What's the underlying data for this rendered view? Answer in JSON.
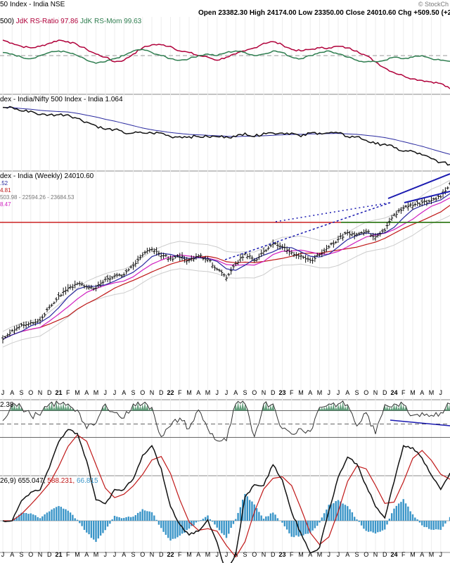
{
  "header": {
    "title": "50 Index - India NSE",
    "ohlc": "Open 23382.30  High 24174.00  Low 23350.00  Close 24010.60  Chg +509.50 (+2",
    "source": "© StockCh"
  },
  "panels": {
    "rrg": {
      "label_prefix": "500)",
      "ratio_label": "JdK RS-Ratio 97.86",
      "mom_label": "JdK RS-Mom 99.63"
    },
    "relative": {
      "label": "dex - India/Nifty 500 Index - India 1.064"
    },
    "price": {
      "label": "dex - India (Weekly) 24010.60",
      "legend": [
        ".52",
        "4.81",
        "503.98 - 22594.26 - 23684.53",
        "8.47"
      ]
    },
    "rsi": {
      "label": "2.38"
    },
    "macd": {
      "label": "26,9) 655.047,",
      "macd_value": "588.231,",
      "hist_value": "66.815"
    }
  },
  "axis": {
    "labels": [
      "J",
      "A",
      "S",
      "O",
      "N",
      "D",
      "21",
      "F",
      "M",
      "A",
      "M",
      "J",
      "J",
      "A",
      "S",
      "O",
      "N",
      "D",
      "22",
      "F",
      "M",
      "A",
      "M",
      "J",
      "J",
      "A",
      "S",
      "O",
      "N",
      "D",
      "23",
      "F",
      "M",
      "A",
      "M",
      "J",
      "J",
      "A",
      "S",
      "O",
      "N",
      "D",
      "24",
      "F",
      "M",
      "A",
      "M",
      "J"
    ]
  },
  "chart_data": {
    "type": "line",
    "x": [
      "Jun 2020",
      "Jul 2020",
      "Aug 2020",
      "Sep 2020",
      "Oct 2020",
      "Nov 2020",
      "Dec 2020",
      "Jan 2021",
      "Feb 2021",
      "Mar 2021",
      "Apr 2021",
      "May 2021",
      "Jun 2021",
      "Jul 2021",
      "Aug 2021",
      "Sep 2021",
      "Oct 2021",
      "Nov 2021",
      "Dec 2021",
      "Jan 2022",
      "Feb 2022",
      "Mar 2022",
      "Apr 2022",
      "May 2022",
      "Jun 2022",
      "Jul 2022",
      "Aug 2022",
      "Sep 2022",
      "Oct 2022",
      "Nov 2022",
      "Dec 2022",
      "Jan 2023",
      "Feb 2023",
      "Mar 2023",
      "Apr 2023",
      "May 2023",
      "Jun 2023",
      "Jul 2023",
      "Aug 2023",
      "Sep 2023",
      "Oct 2023",
      "Nov 2023",
      "Dec 2023",
      "Jan 2024",
      "Feb 2024",
      "Mar 2024",
      "Apr 2024",
      "May 2024",
      "Jun 2024"
    ],
    "series": [
      {
        "name": "price",
        "values": [
          10000,
          10800,
          11300,
          11500,
          11700,
          12900,
          13900,
          14600,
          15000,
          14700,
          14600,
          15400,
          15700,
          15800,
          16600,
          17600,
          18100,
          17500,
          17300,
          17400,
          17100,
          17500,
          17200,
          16300,
          15500,
          16800,
          17700,
          17100,
          17900,
          18600,
          18300,
          17800,
          17500,
          17100,
          17600,
          18300,
          19000,
          19600,
          19400,
          19700,
          19200,
          19800,
          21200,
          21800,
          22000,
          22300,
          22500,
          22800,
          24010.6
        ]
      },
      {
        "name": "relative",
        "values": [
          1.22,
          1.22,
          1.21,
          1.21,
          1.2,
          1.2,
          1.2,
          1.2,
          1.19,
          1.18,
          1.17,
          1.16,
          1.16,
          1.15,
          1.15,
          1.15,
          1.15,
          1.15,
          1.14,
          1.14,
          1.14,
          1.14,
          1.14,
          1.14,
          1.14,
          1.14,
          1.15,
          1.14,
          1.15,
          1.15,
          1.15,
          1.15,
          1.14,
          1.15,
          1.15,
          1.15,
          1.15,
          1.14,
          1.14,
          1.13,
          1.12,
          1.12,
          1.11,
          1.1,
          1.1,
          1.09,
          1.08,
          1.07,
          1.064
        ]
      },
      {
        "name": "JdK RS-Ratio",
        "values": [
          101.0,
          100.8,
          100.6,
          100.5,
          100.6,
          100.8,
          101.0,
          100.9,
          100.7,
          100.4,
          100.1,
          99.9,
          99.6,
          99.7,
          100.1,
          100.5,
          100.7,
          100.7,
          100.6,
          100.3,
          100.2,
          100.0,
          99.9,
          99.7,
          99.9,
          100.1,
          100.3,
          100.5,
          100.8,
          100.9,
          100.7,
          100.4,
          100.3,
          100.4,
          100.5,
          100.5,
          100.6,
          100.5,
          100.3,
          100.0,
          99.6,
          99.2,
          98.9,
          98.7,
          98.5,
          98.4,
          98.3,
          98.2,
          97.86
        ]
      },
      {
        "name": "JdK RS-Mom",
        "values": [
          100.2,
          100.1,
          99.9,
          99.8,
          100.0,
          100.2,
          100.3,
          100.2,
          100.0,
          99.7,
          99.5,
          99.6,
          99.8,
          100.0,
          100.3,
          100.4,
          100.2,
          100.0,
          99.8,
          99.7,
          99.8,
          100.0,
          100.1,
          100.0,
          100.2,
          100.3,
          100.2,
          100.0,
          100.1,
          100.3,
          100.2,
          99.9,
          99.8,
          100.0,
          100.2,
          100.3,
          100.1,
          99.9,
          99.7,
          99.6,
          99.6,
          99.7,
          99.9,
          99.8,
          99.9,
          100.0,
          99.8,
          99.7,
          99.63
        ]
      }
    ]
  },
  "colors": {
    "price": "#111111",
    "ma_blue": "#2a2aa0",
    "ma_magenta": "#d020c0",
    "ma_red": "#c01818",
    "ratio": "#b0003a",
    "mom": "#2e7d4f",
    "support_green": "#1c8a1c",
    "resistance_red": "#cc2222",
    "trend_blue": "#1a1ab0",
    "hist": "#3a95c8"
  }
}
